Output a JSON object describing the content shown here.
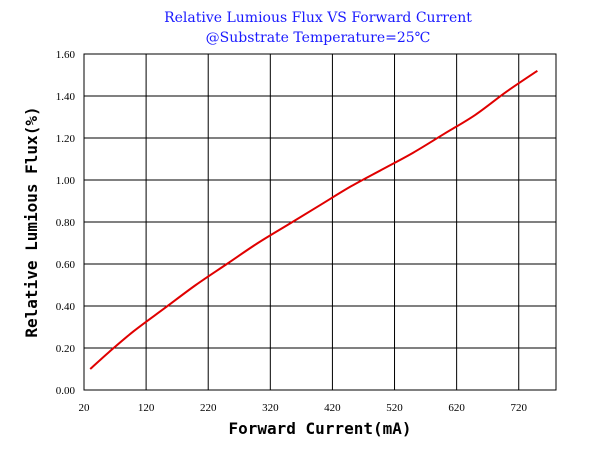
{
  "chart_data": {
    "type": "line",
    "title": "Relative Lumious Flux VS Forward Current",
    "subtitle": "@Substrate Temperature=25℃",
    "xlabel": "Forward Current(mA)",
    "ylabel": "Relative Lumious Flux(%)",
    "xlim": [
      20,
      780
    ],
    "ylim": [
      0,
      1.6
    ],
    "xticks": [
      20,
      120,
      220,
      320,
      420,
      520,
      620,
      720
    ],
    "xtick_labels": [
      "20",
      "120",
      "220",
      "320",
      "420",
      "520",
      "620",
      "720"
    ],
    "yticks": [
      0,
      0.2,
      0.4,
      0.6,
      0.8,
      1.0,
      1.2,
      1.4,
      1.6
    ],
    "ytick_labels": [
      "0.00",
      "0.20",
      "0.40",
      "0.60",
      "0.80",
      "1.00",
      "1.20",
      "1.40",
      "1.60"
    ],
    "grid": true,
    "series": [
      {
        "color": "#e00000",
        "x": [
          30,
          60,
          100,
          150,
          200,
          250,
          300,
          350,
          400,
          450,
          500,
          550,
          600,
          650,
          700,
          750
        ],
        "y": [
          0.1,
          0.18,
          0.28,
          0.39,
          0.5,
          0.6,
          0.7,
          0.79,
          0.88,
          0.97,
          1.05,
          1.13,
          1.22,
          1.31,
          1.42,
          1.52
        ]
      }
    ]
  }
}
